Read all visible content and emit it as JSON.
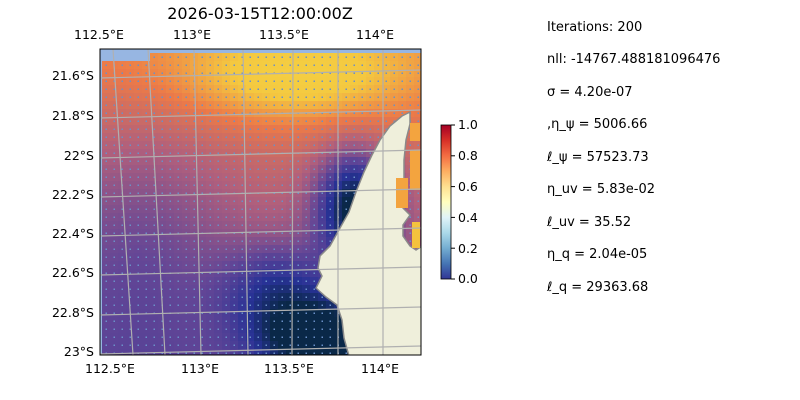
{
  "title": "2026-03-15T12:00:00Z",
  "map": {
    "lon_ticks_top": [
      "112.5°E",
      "113°E",
      "113.5°E",
      "114°E"
    ],
    "lon_ticks_bottom": [
      "112.5°E",
      "113°E",
      "113.5°E",
      "114°E"
    ],
    "lat_ticks": [
      "21.6°S",
      "21.8°S",
      "22°S",
      "22.2°S",
      "22.4°S",
      "22.6°S",
      "22.8°S",
      "23°S"
    ],
    "colors": {
      "ocean": "#97b6e2",
      "land": "#efefdb",
      "coast": "#8a8a8a",
      "grid": "#b0b0b0"
    }
  },
  "colorbar": {
    "ticks": [
      "0.0",
      "0.2",
      "0.4",
      "0.6",
      "0.8",
      "1.0"
    ],
    "range": [
      0,
      1
    ],
    "colormap": "RdYlBu_r"
  },
  "stats": [
    "Iterations: 200",
    "nll: -14767.488181096476",
    "σ = 4.20e-07",
    ",η_ψ = 5006.66",
    "ℓ_ψ = 57523.73",
    "η_uv = 5.83e-02",
    "ℓ_uv = 35.52",
    "η_q = 2.04e-05",
    "ℓ_q = 29363.68"
  ]
}
